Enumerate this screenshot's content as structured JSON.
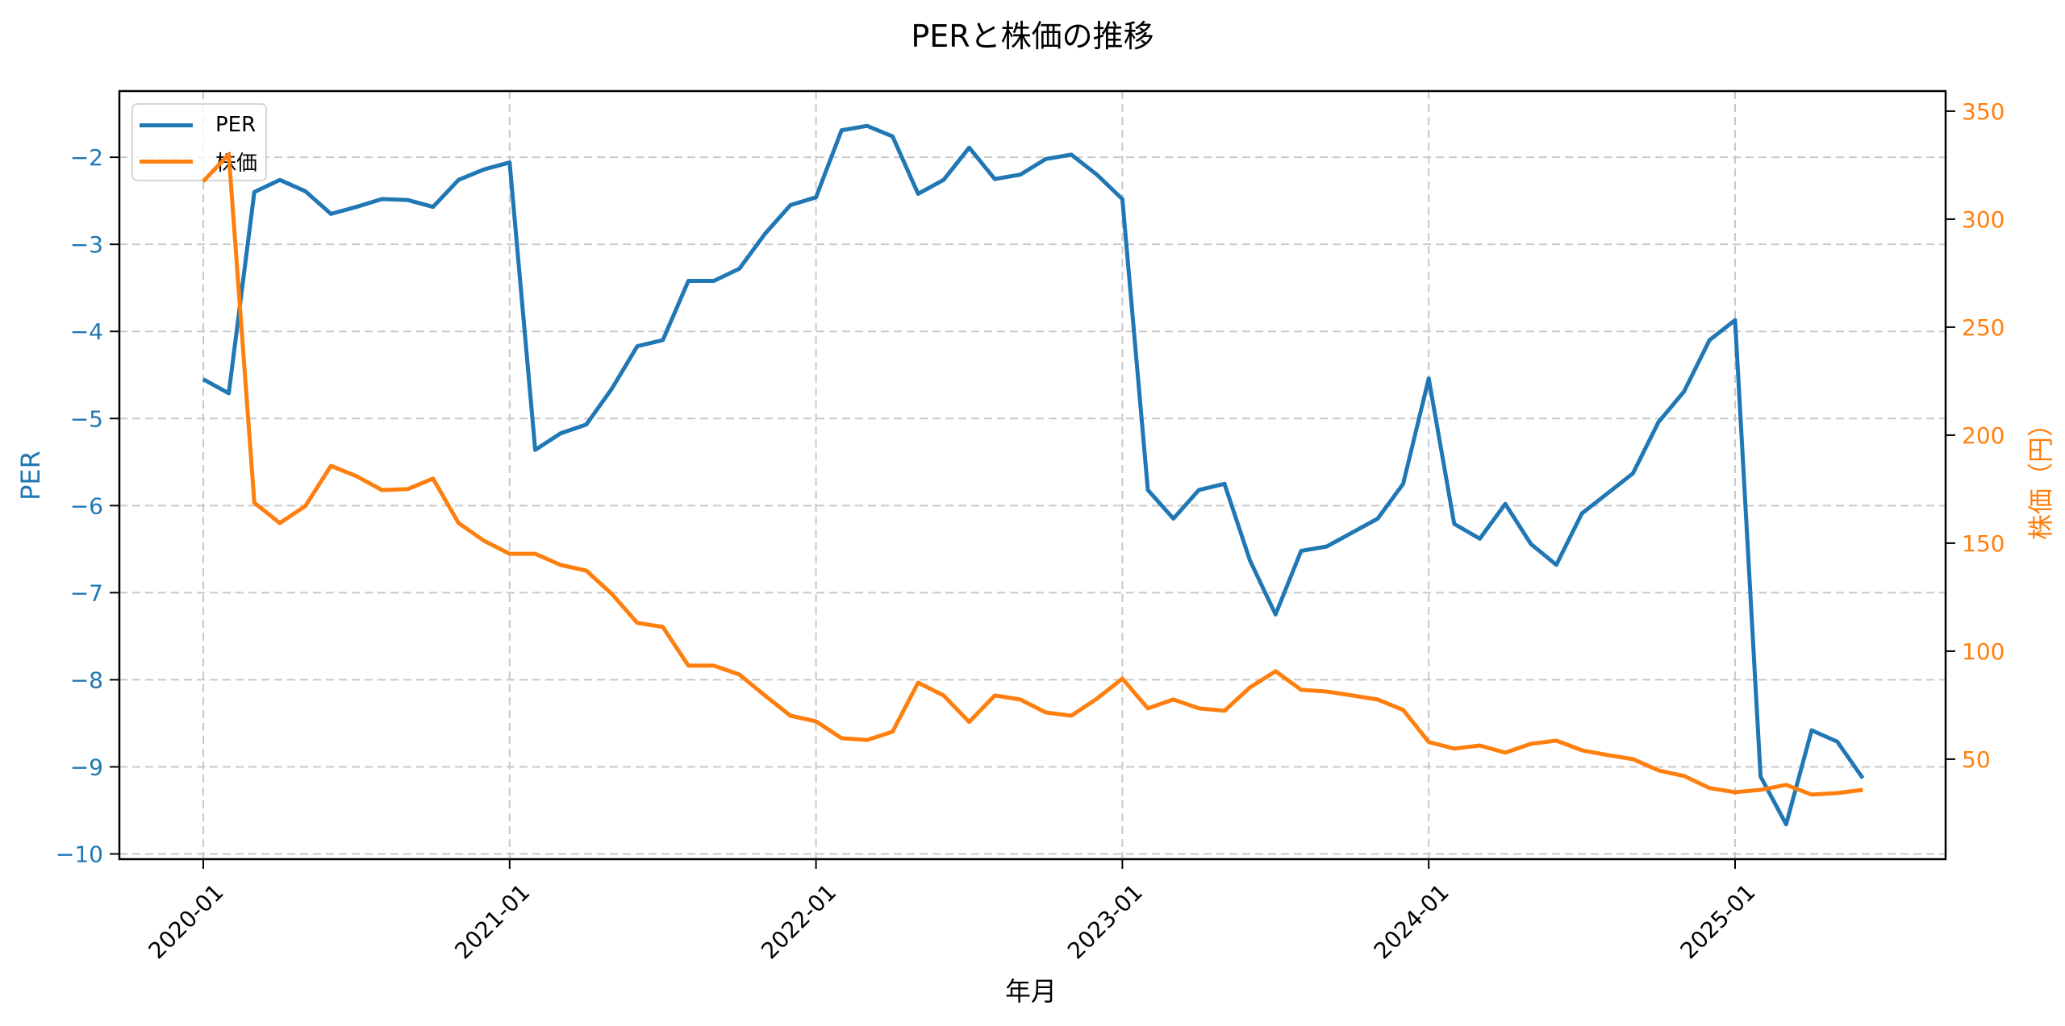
{
  "title": "PERと株価の推移",
  "xlabel": "年月",
  "ylabel_left": "PER",
  "ylabel_right": "株価（円）",
  "legend": {
    "items": [
      {
        "label": "PER",
        "color": "#1f77b4"
      },
      {
        "label": "株価",
        "color": "#ff7f0e"
      }
    ]
  },
  "colors": {
    "per": "#1f77b4",
    "price": "#ff7f0e",
    "grid": "#c8c8c8",
    "axis": "#000000"
  },
  "chart_data": {
    "type": "line",
    "title": "PERと株価の推移",
    "xlabel": "年月",
    "ylabel": "PER",
    "ylabel_secondary": "株価（円）",
    "x_tick_labels": [
      "2020-01",
      "2021-01",
      "2022-01",
      "2023-01",
      "2024-01",
      "2025-01"
    ],
    "y_ticks_left": [
      -10,
      -9,
      -8,
      -7,
      -6,
      -5,
      -4,
      -3,
      -2
    ],
    "y_ticks_right": [
      50,
      100,
      150,
      200,
      250,
      300,
      350
    ],
    "ylim_left": [
      -10.06,
      -1.24
    ],
    "ylim_right": [
      3.7,
      359.3
    ],
    "grid": true,
    "legend_position": "upper left",
    "x": [
      "2020-01",
      "2020-02",
      "2020-03",
      "2020-04",
      "2020-05",
      "2020-06",
      "2020-07",
      "2020-08",
      "2020-09",
      "2020-10",
      "2020-11",
      "2020-12",
      "2021-01",
      "2021-02",
      "2021-03",
      "2021-04",
      "2021-05",
      "2021-06",
      "2021-07",
      "2021-08",
      "2021-09",
      "2021-10",
      "2021-11",
      "2021-12",
      "2022-01",
      "2022-02",
      "2022-03",
      "2022-04",
      "2022-05",
      "2022-06",
      "2022-07",
      "2022-08",
      "2022-09",
      "2022-10",
      "2022-11",
      "2022-12",
      "2023-01",
      "2023-02",
      "2023-03",
      "2023-04",
      "2023-05",
      "2023-06",
      "2023-07",
      "2023-08",
      "2023-09",
      "2023-10",
      "2023-11",
      "2023-12",
      "2024-01",
      "2024-02",
      "2024-03",
      "2024-04",
      "2024-05",
      "2024-06",
      "2024-07",
      "2024-08",
      "2024-09",
      "2024-10",
      "2024-11",
      "2024-12",
      "2025-01",
      "2025-02",
      "2025-03",
      "2025-04",
      "2025-05",
      "2025-06"
    ],
    "series": [
      {
        "name": "PER",
        "axis": "left",
        "color": "#1f77b4",
        "values": [
          -4.55,
          -4.71,
          -2.4,
          -2.26,
          -2.39,
          -2.65,
          -2.57,
          -2.48,
          -2.49,
          -2.57,
          -2.26,
          -2.14,
          -2.06,
          -5.36,
          -5.17,
          -5.07,
          -4.66,
          -4.17,
          -4.1,
          -3.42,
          -3.42,
          -3.28,
          -2.88,
          -2.55,
          -2.46,
          -1.69,
          -1.64,
          -1.76,
          -2.42,
          -2.26,
          -1.89,
          -2.25,
          -2.2,
          -2.02,
          -1.97,
          -2.2,
          -2.48,
          -5.82,
          -6.15,
          -5.82,
          -5.75,
          -6.63,
          -7.25,
          -6.52,
          -6.47,
          -6.31,
          -6.15,
          -5.75,
          -4.54,
          -6.21,
          -6.38,
          -5.98,
          -6.44,
          -6.68,
          -6.09,
          -5.86,
          -5.63,
          -5.04,
          -4.69,
          -4.1,
          -3.87,
          -9.11,
          -9.66,
          -8.58,
          -8.71,
          -9.13
        ]
      },
      {
        "name": "株価",
        "axis": "right",
        "color": "#ff7f0e",
        "values": [
          317.5,
          330.0,
          168.7,
          159.3,
          167.2,
          185.8,
          181.0,
          174.6,
          175.0,
          179.9,
          159.3,
          151.1,
          145.1,
          145.1,
          139.9,
          137.3,
          126.5,
          113.1,
          111.2,
          93.3,
          93.3,
          89.2,
          79.5,
          70.1,
          67.5,
          59.7,
          58.9,
          62.7,
          85.4,
          79.5,
          67.2,
          79.5,
          77.6,
          71.6,
          70.1,
          78.0,
          87.3,
          73.5,
          77.6,
          73.5,
          72.4,
          83.2,
          90.7,
          82.1,
          81.3,
          79.5,
          77.6,
          72.8,
          57.9,
          54.9,
          56.3,
          53.0,
          57.1,
          58.6,
          54.1,
          51.9,
          50.0,
          44.8,
          42.2,
          36.6,
          34.7,
          35.8,
          38.1,
          33.6,
          34.3,
          35.8
        ]
      }
    ]
  }
}
